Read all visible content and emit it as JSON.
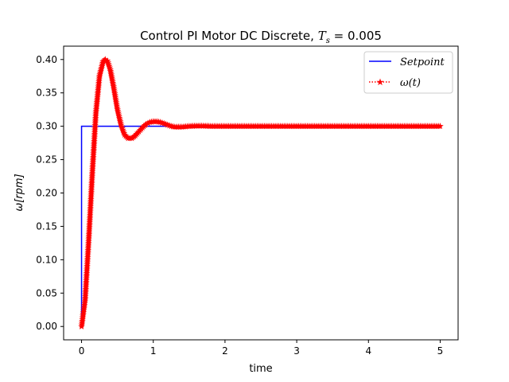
{
  "chart_data": {
    "type": "line",
    "title": "Control PI Motor DC Discrete, ",
    "title_math": {
      "symbol": "T",
      "subscript": "s",
      "rest": " = 0.005"
    },
    "xlabel": "time",
    "ylabel": "ω[rpm]",
    "xlim": [
      -0.25,
      5.25
    ],
    "ylim": [
      -0.02,
      0.42
    ],
    "xticks": [
      0,
      1,
      2,
      3,
      4,
      5
    ],
    "yticks": [
      0.0,
      0.05,
      0.1,
      0.15,
      0.2,
      0.25,
      0.3,
      0.35,
      0.4
    ],
    "grid": false,
    "legend_position": "top-right",
    "series": [
      {
        "name": "Setpoint",
        "style": "solid",
        "color": "#0000ff",
        "x": [
          0,
          0,
          5
        ],
        "y": [
          0,
          0.3,
          0.3
        ]
      },
      {
        "name": "ω(t)",
        "style": "dotted-star",
        "color": "#ff0000",
        "x": [
          0,
          0.05,
          0.1,
          0.15,
          0.2,
          0.25,
          0.3,
          0.33,
          0.36,
          0.4,
          0.45,
          0.5,
          0.55,
          0.6,
          0.65,
          0.7,
          0.75,
          0.8,
          0.85,
          0.9,
          0.95,
          1.0,
          1.05,
          1.1,
          1.15,
          1.2,
          1.25,
          1.3,
          1.35,
          1.4,
          1.45,
          1.5,
          1.6,
          1.7,
          1.8,
          2.0,
          2.5,
          3.0,
          3.5,
          4.0,
          4.5,
          5.0
        ],
        "y": [
          0.0,
          0.04,
          0.13,
          0.23,
          0.32,
          0.375,
          0.397,
          0.4,
          0.398,
          0.385,
          0.357,
          0.325,
          0.302,
          0.287,
          0.282,
          0.282,
          0.286,
          0.292,
          0.298,
          0.303,
          0.306,
          0.307,
          0.307,
          0.306,
          0.304,
          0.302,
          0.3,
          0.299,
          0.299,
          0.299,
          0.2995,
          0.3,
          0.3005,
          0.3005,
          0.3,
          0.3,
          0.3,
          0.3,
          0.3,
          0.3,
          0.3,
          0.3
        ]
      }
    ]
  }
}
